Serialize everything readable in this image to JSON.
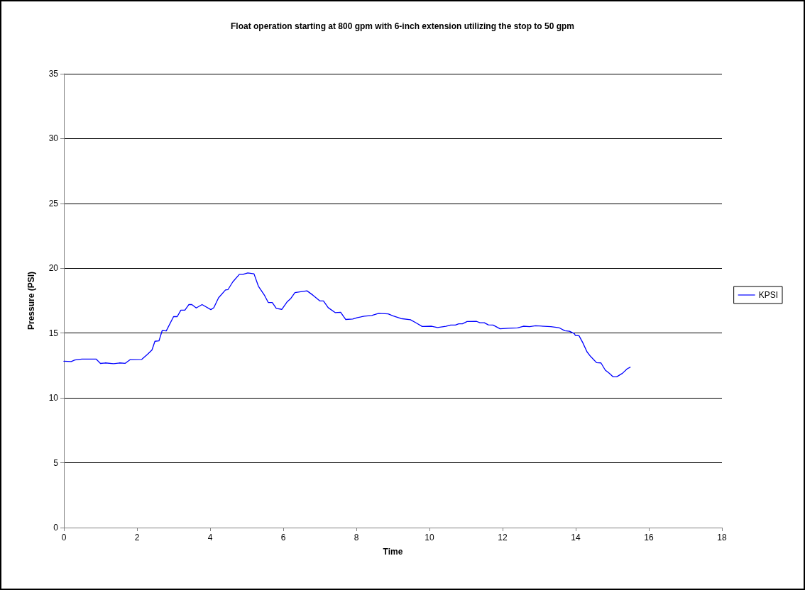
{
  "chart_data": {
    "type": "line",
    "title": "Float operation starting at 800 gpm with 6-inch extension utilizing the stop to 50 gpm",
    "xlabel": "Time",
    "ylabel": "Pressure (PSI)",
    "xlim": [
      0,
      18
    ],
    "xticks": [
      0,
      2,
      4,
      6,
      8,
      10,
      12,
      14,
      16,
      18
    ],
    "ylim": [
      0,
      35
    ],
    "yticks": [
      0,
      5,
      10,
      15,
      20,
      25,
      30,
      35
    ],
    "grid": "y",
    "legend": "right",
    "marker": "none",
    "line_style": "solid",
    "series": [
      {
        "name": "KPSI",
        "color": "#0000ff",
        "x": [
          0,
          0.2,
          0.3,
          0.49,
          0.88,
          1.0,
          1.13,
          1.36,
          1.52,
          1.68,
          1.81,
          2.13,
          2.29,
          2.41,
          2.49,
          2.6,
          2.69,
          2.8,
          3.0,
          3.1,
          3.2,
          3.31,
          3.42,
          3.5,
          3.62,
          3.78,
          4.02,
          4.1,
          4.23,
          4.42,
          4.49,
          4.62,
          4.8,
          4.9,
          5.03,
          5.2,
          5.32,
          5.49,
          5.59,
          5.7,
          5.81,
          5.96,
          6.1,
          6.21,
          6.32,
          6.48,
          6.65,
          6.81,
          7.0,
          7.1,
          7.23,
          7.42,
          7.57,
          7.71,
          7.9,
          8.03,
          8.22,
          8.42,
          8.61,
          8.87,
          9.0,
          9.22,
          9.48,
          9.64,
          9.8,
          10.06,
          10.22,
          10.45,
          10.58,
          10.71,
          10.8,
          10.9,
          11.03,
          11.29,
          11.38,
          11.5,
          11.61,
          11.74,
          11.93,
          12.16,
          12.41,
          12.57,
          12.74,
          12.9,
          13.32,
          13.54,
          13.7,
          13.83,
          13.96,
          13.99,
          14.09,
          14.19,
          14.31,
          14.41,
          14.57,
          14.69,
          14.81,
          14.91,
          15.02,
          15.12,
          15.28,
          15.41,
          15.49
        ],
        "values": [
          12.83,
          12.8,
          12.93,
          13.0,
          13.0,
          12.66,
          12.7,
          12.64,
          12.7,
          12.67,
          12.95,
          12.97,
          13.37,
          13.7,
          14.37,
          14.4,
          15.2,
          15.17,
          16.27,
          16.27,
          16.77,
          16.77,
          17.21,
          17.2,
          16.94,
          17.2,
          16.81,
          16.95,
          17.72,
          18.33,
          18.36,
          18.95,
          19.53,
          19.53,
          19.64,
          19.57,
          18.62,
          17.9,
          17.36,
          17.36,
          16.9,
          16.83,
          17.39,
          17.68,
          18.12,
          18.19,
          18.26,
          17.93,
          17.48,
          17.48,
          16.96,
          16.58,
          16.6,
          16.05,
          16.08,
          16.2,
          16.3,
          16.36,
          16.52,
          16.48,
          16.33,
          16.12,
          16.03,
          15.78,
          15.51,
          15.53,
          15.43,
          15.53,
          15.62,
          15.62,
          15.72,
          15.72,
          15.89,
          15.9,
          15.8,
          15.8,
          15.63,
          15.62,
          15.33,
          15.37,
          15.4,
          15.53,
          15.5,
          15.56,
          15.5,
          15.42,
          15.18,
          15.14,
          14.96,
          14.82,
          14.8,
          14.28,
          13.55,
          13.19,
          12.72,
          12.7,
          12.14,
          11.92,
          11.63,
          11.63,
          11.9,
          12.25,
          12.37
        ]
      }
    ]
  }
}
